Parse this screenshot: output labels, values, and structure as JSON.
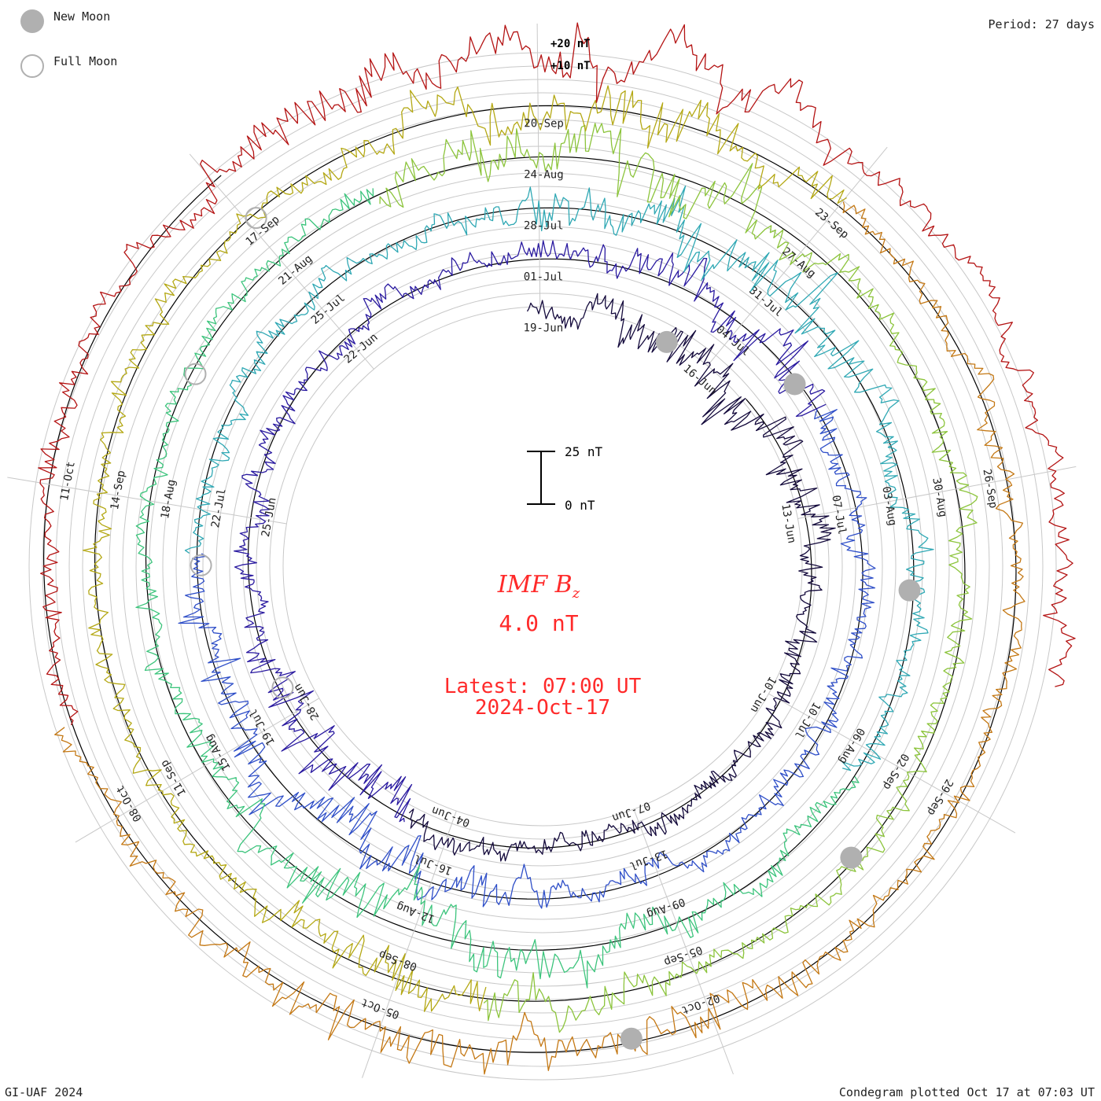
{
  "header": {
    "period": "Period: 27 days",
    "footer_left": "GI-UAF 2024",
    "footer_right": "Condegram plotted Oct 17 at 07:03 UT"
  },
  "legend": {
    "new_moon": "New Moon",
    "full_moon": "Full Moon"
  },
  "scale": {
    "top": "25 nT",
    "bottom": "0 nT"
  },
  "ring_labels": {
    "plus20": "+20 nT",
    "plus10": "+10 nT"
  },
  "center": {
    "title_main": "IMF B",
    "title_sub": "z",
    "value": "4.0 nT",
    "latest": "Latest: 07:00 UT",
    "date": "2024-Oct-17"
  },
  "colors": {
    "new_moon": "#b0b0b0",
    "full_moon": "#b0b0b0",
    "center_text": "#ff2a2a",
    "grid": "#c8c8c8",
    "rotations": [
      "#140a3c",
      "#2a1aa0",
      "#2f4fc8",
      "#2fa8b4",
      "#3cc47c",
      "#8cc43c",
      "#b4a814",
      "#c47814",
      "#b41414"
    ]
  },
  "chart_data": {
    "type": "condegram",
    "title": "IMF Bz",
    "period_days": 27,
    "unit": "nT",
    "latest_value": 4.0,
    "rotation_start_dates": [
      "2024-Jun-04",
      "2024-Jul-01",
      "2024-Jul-28",
      "2024-Aug-24",
      "2024-Sep-20",
      "2024-Oct-17"
    ],
    "tick_labels": [
      {
        "rotation": 0,
        "labels": [
          "19-Jun",
          "16-Jun",
          "13-Jun",
          "10-Jun",
          "07-Jun",
          "04-Jun",
          "28-Jun",
          "25-Jun",
          "22-Jun"
        ]
      },
      {
        "rotation": 1,
        "labels": [
          "01-Jul",
          "04-Jul",
          "07-Jul",
          "10-Jul",
          "13-Jul",
          "16-Jul",
          "19-Jul",
          "22-Jul",
          "25-Jul"
        ]
      },
      {
        "rotation": 2,
        "labels": [
          "28-Jul",
          "31-Jul",
          "03-Aug",
          "06-Aug",
          "09-Aug",
          "12-Aug",
          "15-Aug",
          "18-Aug",
          "21-Aug"
        ]
      },
      {
        "rotation": 3,
        "labels": [
          "24-Aug",
          "27-Aug",
          "30-Aug",
          "02-Sep",
          "05-Sep",
          "08-Sep",
          "11-Sep",
          "14-Sep",
          "17-Sep"
        ]
      },
      {
        "rotation": 4,
        "labels": [
          "20-Sep",
          "23-Sep",
          "26-Sep",
          "29-Sep",
          "02-Oct",
          "05-Oct",
          "08-Oct",
          "11-Oct"
        ]
      }
    ],
    "new_moons": [
      "2024-Jun-06",
      "2024-Jul-05",
      "2024-Aug-04",
      "2024-Sep-03",
      "2024-Oct-02"
    ],
    "full_moons": [
      "2024-Jun-22",
      "2024-Jul-21",
      "2024-Aug-19",
      "2024-Sep-18"
    ],
    "scale_bar": {
      "min": 0,
      "max": 25
    }
  }
}
